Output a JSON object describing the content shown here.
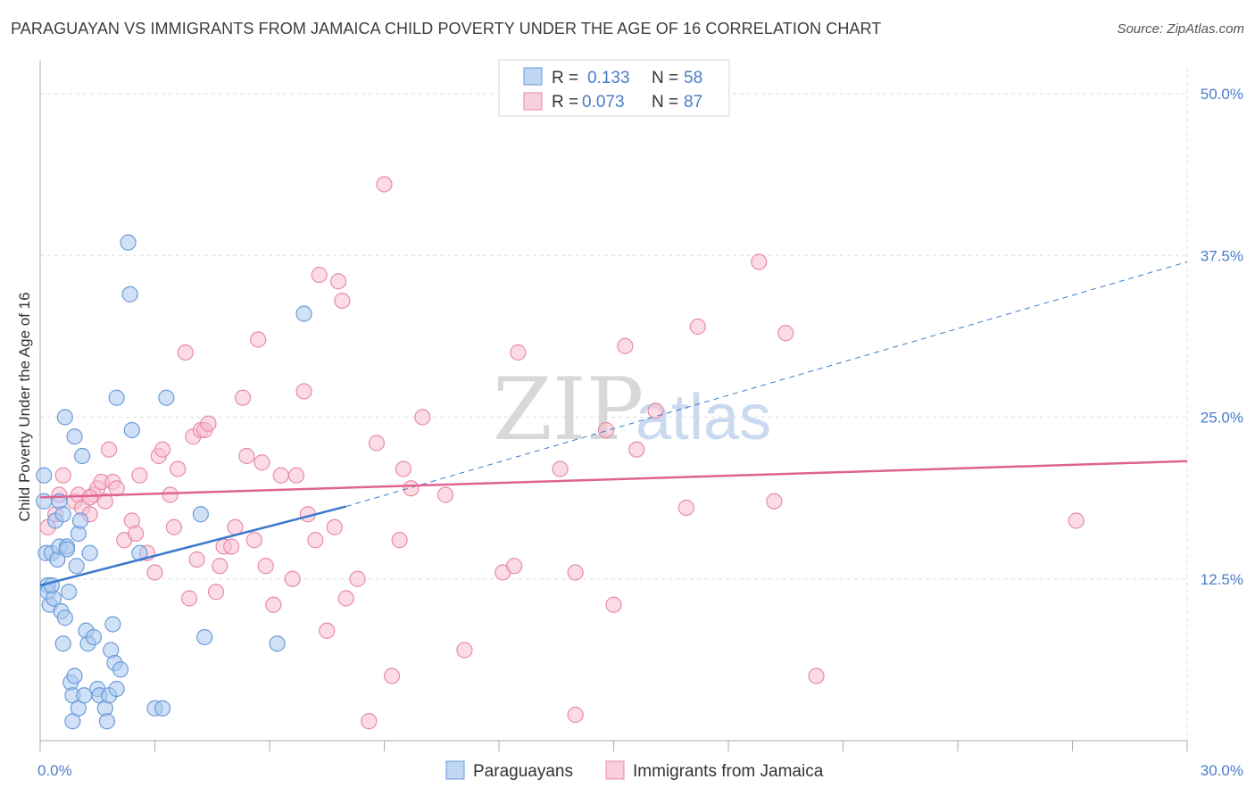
{
  "title": "PARAGUAYAN VS IMMIGRANTS FROM JAMAICA CHILD POVERTY UNDER THE AGE OF 16 CORRELATION CHART",
  "source": "Source: ZipAtlas.com",
  "watermark": {
    "zip": "ZIP",
    "atlas": "atlas"
  },
  "colors": {
    "blue_fill": "#a9c8f0",
    "blue_stroke": "#6a9bd8",
    "blue_line": "#3a78cc",
    "pink_fill": "#f7bfd0",
    "pink_stroke": "#e88aa8",
    "pink_line": "#e0638f",
    "grid": "#dddddd",
    "tick_text": "#4a7cc9"
  },
  "legend": {
    "r_label": "R =",
    "n_label": "N =",
    "entries": [
      {
        "r": "0.133",
        "n": "58"
      },
      {
        "r": "0.073",
        "n": "87"
      }
    ]
  },
  "chart_data": {
    "type": "scatter",
    "title": "PARAGUAYAN VS IMMIGRANTS FROM JAMAICA CHILD POVERTY UNDER THE AGE OF 16 CORRELATION CHART",
    "xlabel": "",
    "ylabel": "Child Poverty Under the Age of 16",
    "xlim": [
      0,
      30
    ],
    "ylim": [
      0,
      52
    ],
    "x_tick_labels": [
      "0.0%",
      "30.0%"
    ],
    "y_ticks": [
      12.5,
      25.0,
      37.5,
      50.0
    ],
    "y_tick_labels": [
      "12.5%",
      "25.0%",
      "37.5%",
      "50.0%"
    ],
    "grid": true,
    "legend_placement": "top-center",
    "series": [
      {
        "name": "Paraguayans",
        "points": [
          [
            0.1,
            20.5
          ],
          [
            0.1,
            18.5
          ],
          [
            0.15,
            14.5
          ],
          [
            0.2,
            12
          ],
          [
            0.25,
            10.5
          ],
          [
            0.2,
            11.5
          ],
          [
            0.3,
            14.5
          ],
          [
            0.35,
            11
          ],
          [
            0.4,
            17
          ],
          [
            0.45,
            14
          ],
          [
            0.5,
            15
          ],
          [
            0.5,
            18.5
          ],
          [
            0.55,
            10
          ],
          [
            0.6,
            17.5
          ],
          [
            0.6,
            7.5
          ],
          [
            0.65,
            9.5
          ],
          [
            0.65,
            25
          ],
          [
            0.7,
            15
          ],
          [
            0.75,
            11.5
          ],
          [
            0.8,
            4.5
          ],
          [
            0.85,
            1.5
          ],
          [
            0.85,
            3.5
          ],
          [
            0.9,
            23.5
          ],
          [
            0.9,
            5
          ],
          [
            0.95,
            13.5
          ],
          [
            1.0,
            2.5
          ],
          [
            1.0,
            16
          ],
          [
            1.05,
            17
          ],
          [
            1.1,
            22
          ],
          [
            1.15,
            3.5
          ],
          [
            1.2,
            8.5
          ],
          [
            1.25,
            7.5
          ],
          [
            1.3,
            14.5
          ],
          [
            1.4,
            8
          ],
          [
            1.5,
            4
          ],
          [
            1.55,
            3.5
          ],
          [
            1.7,
            2.5
          ],
          [
            1.75,
            1.5
          ],
          [
            1.8,
            3.5
          ],
          [
            1.85,
            7
          ],
          [
            1.9,
            9
          ],
          [
            1.95,
            6
          ],
          [
            2.0,
            4
          ],
          [
            2.1,
            5.5
          ],
          [
            2.3,
            38.5
          ],
          [
            2.35,
            34.5
          ],
          [
            2.4,
            24
          ],
          [
            2.6,
            14.5
          ],
          [
            3.0,
            2.5
          ],
          [
            3.2,
            2.5
          ],
          [
            3.3,
            26.5
          ],
          [
            4.2,
            17.5
          ],
          [
            4.3,
            8
          ],
          [
            6.2,
            7.5
          ],
          [
            6.9,
            33
          ],
          [
            2.0,
            26.5
          ],
          [
            0.7,
            14.8
          ],
          [
            0.3,
            12
          ]
        ]
      },
      {
        "name": "Immigrants from Jamaica",
        "points": [
          [
            0.2,
            16.5
          ],
          [
            0.4,
            17.5
          ],
          [
            0.5,
            19
          ],
          [
            0.6,
            20.5
          ],
          [
            0.9,
            18.5
          ],
          [
            1.0,
            19
          ],
          [
            1.1,
            18
          ],
          [
            1.3,
            17.5
          ],
          [
            1.4,
            19
          ],
          [
            1.5,
            19.5
          ],
          [
            1.6,
            20
          ],
          [
            1.7,
            18.5
          ],
          [
            1.8,
            22.5
          ],
          [
            1.9,
            20
          ],
          [
            2.0,
            19.5
          ],
          [
            2.2,
            15.5
          ],
          [
            2.4,
            17
          ],
          [
            2.5,
            16
          ],
          [
            2.6,
            20.5
          ],
          [
            2.8,
            14.5
          ],
          [
            3.0,
            13
          ],
          [
            3.1,
            22
          ],
          [
            3.2,
            22.5
          ],
          [
            3.4,
            19
          ],
          [
            3.5,
            16.5
          ],
          [
            3.6,
            21
          ],
          [
            3.8,
            30
          ],
          [
            3.9,
            11
          ],
          [
            4.0,
            23.5
          ],
          [
            4.1,
            14
          ],
          [
            4.2,
            24
          ],
          [
            4.3,
            24
          ],
          [
            4.4,
            24.5
          ],
          [
            4.6,
            11.5
          ],
          [
            4.7,
            13.5
          ],
          [
            4.8,
            15
          ],
          [
            5.0,
            15
          ],
          [
            5.1,
            16.5
          ],
          [
            5.3,
            26.5
          ],
          [
            5.4,
            22
          ],
          [
            5.6,
            15.5
          ],
          [
            5.7,
            31
          ],
          [
            5.8,
            21.5
          ],
          [
            5.9,
            13.5
          ],
          [
            6.1,
            10.5
          ],
          [
            6.3,
            20.5
          ],
          [
            6.6,
            12.5
          ],
          [
            6.7,
            20.5
          ],
          [
            6.9,
            27
          ],
          [
            7.0,
            17.5
          ],
          [
            7.2,
            15.5
          ],
          [
            7.3,
            36
          ],
          [
            7.5,
            8.5
          ],
          [
            7.7,
            16.5
          ],
          [
            7.8,
            35.5
          ],
          [
            7.9,
            34
          ],
          [
            8.0,
            11
          ],
          [
            8.3,
            12.5
          ],
          [
            8.6,
            1.5
          ],
          [
            8.8,
            23
          ],
          [
            9.0,
            43
          ],
          [
            9.2,
            5
          ],
          [
            9.4,
            15.5
          ],
          [
            9.5,
            21
          ],
          [
            9.7,
            19.5
          ],
          [
            10.0,
            25
          ],
          [
            10.6,
            19
          ],
          [
            11.1,
            7
          ],
          [
            12.1,
            13
          ],
          [
            12.4,
            13.5
          ],
          [
            12.5,
            30
          ],
          [
            13.6,
            21
          ],
          [
            14.0,
            13
          ],
          [
            14.0,
            2
          ],
          [
            14.8,
            24
          ],
          [
            15.0,
            10.5
          ],
          [
            15.3,
            30.5
          ],
          [
            15.6,
            22.5
          ],
          [
            16.1,
            25.5
          ],
          [
            16.9,
            18
          ],
          [
            17.2,
            32
          ],
          [
            18.8,
            37
          ],
          [
            19.2,
            18.5
          ],
          [
            19.5,
            31.5
          ],
          [
            20.3,
            5
          ],
          [
            27.1,
            17
          ],
          [
            1.3,
            18.8
          ]
        ]
      }
    ],
    "trend_lines": [
      {
        "series": "Paraguayans",
        "solid": {
          "x": [
            0.0,
            8.0
          ],
          "y": [
            12.0,
            18.1
          ]
        },
        "dashed": {
          "x": [
            8.0,
            30.0
          ],
          "y": [
            18.1,
            37.0
          ]
        }
      },
      {
        "series": "Immigrants from Jamaica",
        "solid": {
          "x": [
            0.0,
            30.0
          ],
          "y": [
            18.8,
            21.6
          ]
        }
      }
    ]
  }
}
